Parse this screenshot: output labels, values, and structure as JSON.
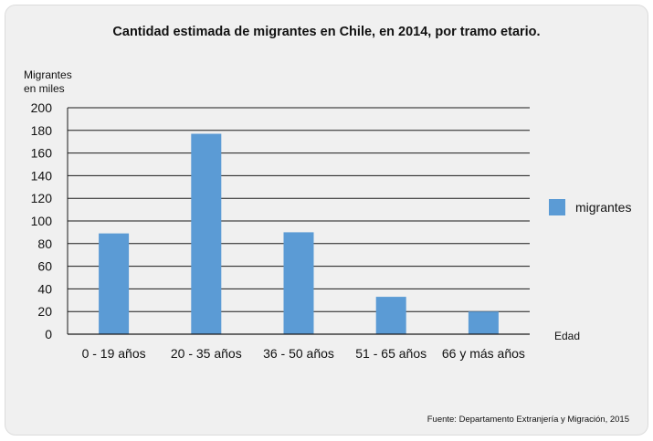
{
  "chart_data": {
    "type": "bar",
    "title": "Cantidad estimada de migrantes en Chile, en 2014, por tramo etario.",
    "ylabel": "Migrantes\nen miles",
    "xlabel": "Edad",
    "categories": [
      "0 - 19 años",
      "20 - 35 años",
      "36 - 50 años",
      "51 - 65 años",
      "66 y más años"
    ],
    "series": [
      {
        "name": "migrantes",
        "values": [
          89,
          177,
          90,
          33,
          20
        ],
        "color": "#5b9bd5"
      }
    ],
    "ylim": [
      0,
      200
    ],
    "yticks": [
      0,
      20,
      40,
      60,
      80,
      100,
      120,
      140,
      160,
      180,
      200
    ],
    "grid": true,
    "legend_position": "right"
  },
  "source": "Fuente: Departamento Extranjería y Migración, 2015"
}
